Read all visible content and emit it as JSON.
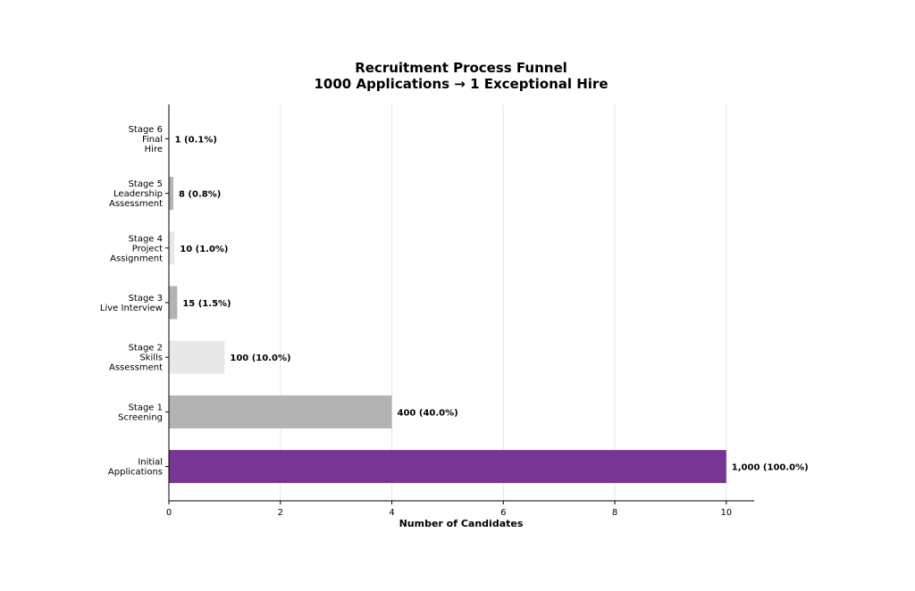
{
  "chart_data": {
    "type": "bar",
    "orientation": "horizontal",
    "title": "Recruitment Process Funnel",
    "subtitle": "1000 Applications → 1 Exceptional Hire",
    "xlabel": "Number of Candidates",
    "ylabel": "",
    "xlim": [
      0,
      10.5
    ],
    "xticks": [
      "0",
      "2",
      "4",
      "6",
      "8",
      "10"
    ],
    "grid": "vertical",
    "categories": [
      [
        "Initial",
        "Applications"
      ],
      [
        "Stage 1",
        "Screening"
      ],
      [
        "Stage 2",
        "Skills",
        "Assessment"
      ],
      [
        "Stage 3",
        "Live Interview"
      ],
      [
        "Stage 4",
        "Project",
        "Assignment"
      ],
      [
        "Stage 5",
        "Leadership",
        "Assessment"
      ],
      [
        "Stage 6",
        "Final",
        "Hire"
      ]
    ],
    "values": [
      10,
      4,
      1,
      0.15,
      0.1,
      0.08,
      0.01
    ],
    "bar_labels": [
      "1,000 (100.0%)",
      "400 (40.0%)",
      "100 (10.0%)",
      "15 (1.5%)",
      "10 (1.0%)",
      "8 (0.8%)",
      "1 (0.1%)"
    ],
    "colors": [
      "#773594",
      "#b3b3b3",
      "#e8e8e8",
      "#b3b3b3",
      "#e8e8e8",
      "#b3b3b3",
      "#e8e8e8"
    ]
  }
}
